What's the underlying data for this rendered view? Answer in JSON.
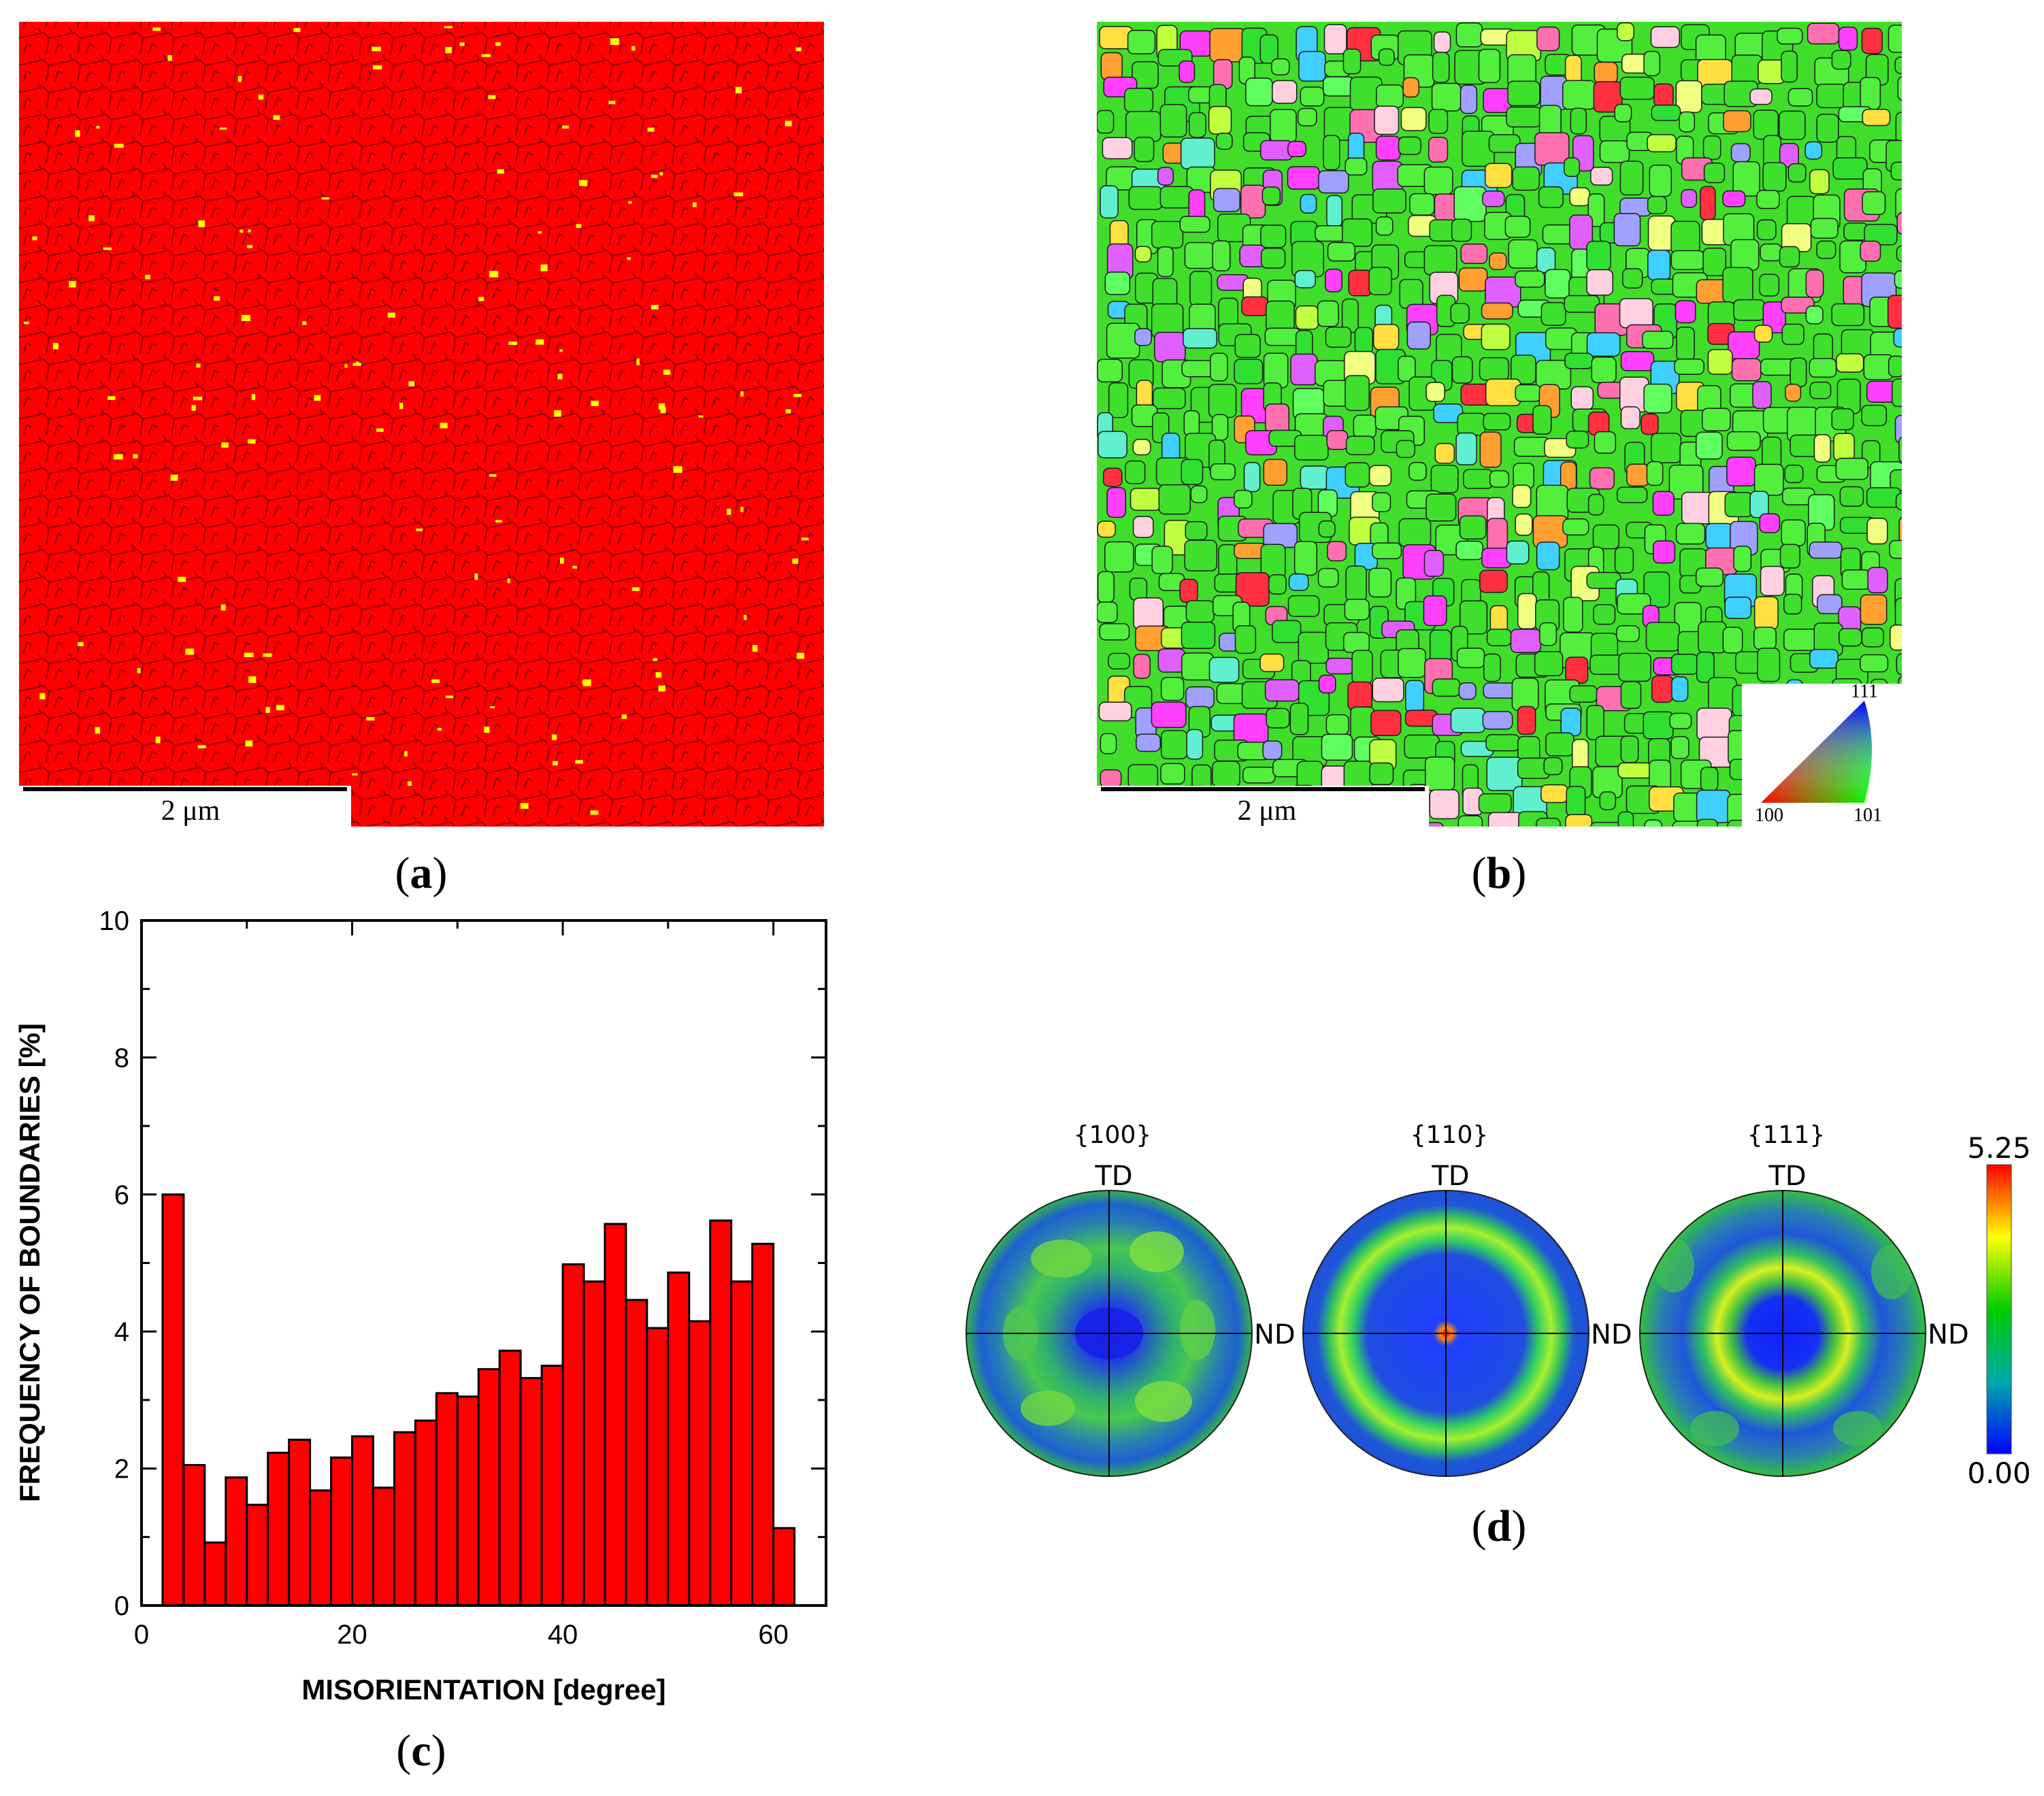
{
  "panels": {
    "a": {
      "label_open": "(",
      "label_letter": "a",
      "label_close": ")",
      "scale_text": "2 μm",
      "phase_color": "#ff0000",
      "minor_color": "#ffff00"
    },
    "b": {
      "label_open": "(",
      "label_letter": "b",
      "label_close": ")",
      "scale_text": "2 μm",
      "ipf_key": {
        "top": "111",
        "left": "100",
        "right": "101"
      }
    },
    "c": {
      "label_open": "(",
      "label_letter": "c",
      "label_close": ")"
    },
    "d": {
      "label_open": "(",
      "label_letter": "d",
      "label_close": ")",
      "pole_figures": [
        {
          "family": "{100}",
          "top_dir": "TD",
          "right_dir": "ND"
        },
        {
          "family": "{110}",
          "top_dir": "TD",
          "right_dir": "ND"
        },
        {
          "family": "{111}",
          "top_dir": "TD",
          "right_dir": "ND"
        }
      ],
      "colorbar": {
        "max_label": "5.25",
        "min_label": "0.00"
      }
    }
  },
  "chart_data": {
    "type": "bar",
    "title": "",
    "xlabel": "MISORIENTATION [degree]",
    "ylabel": "FREQUENCY OF BOUNDARIES [%]",
    "xlim": [
      0,
      65
    ],
    "ylim": [
      0,
      10
    ],
    "xticks": [
      0,
      20,
      40,
      60
    ],
    "yticks": [
      0,
      2,
      4,
      6,
      8,
      10
    ],
    "bin_width": 2,
    "x": [
      3,
      5,
      7,
      9,
      11,
      13,
      15,
      17,
      19,
      21,
      23,
      25,
      27,
      29,
      31,
      33,
      35,
      37,
      39,
      41,
      43,
      45,
      47,
      49,
      51,
      53,
      55,
      57,
      59,
      61
    ],
    "values": [
      6.0,
      2.05,
      0.92,
      1.87,
      1.47,
      2.23,
      2.42,
      1.68,
      2.16,
      2.47,
      1.72,
      2.53,
      2.7,
      3.1,
      3.05,
      3.45,
      3.72,
      3.32,
      3.5,
      4.98,
      4.73,
      5.57,
      4.46,
      4.05,
      4.86,
      4.15,
      5.62,
      4.73,
      5.28,
      1.13
    ],
    "bar_color": "#ff0000"
  }
}
